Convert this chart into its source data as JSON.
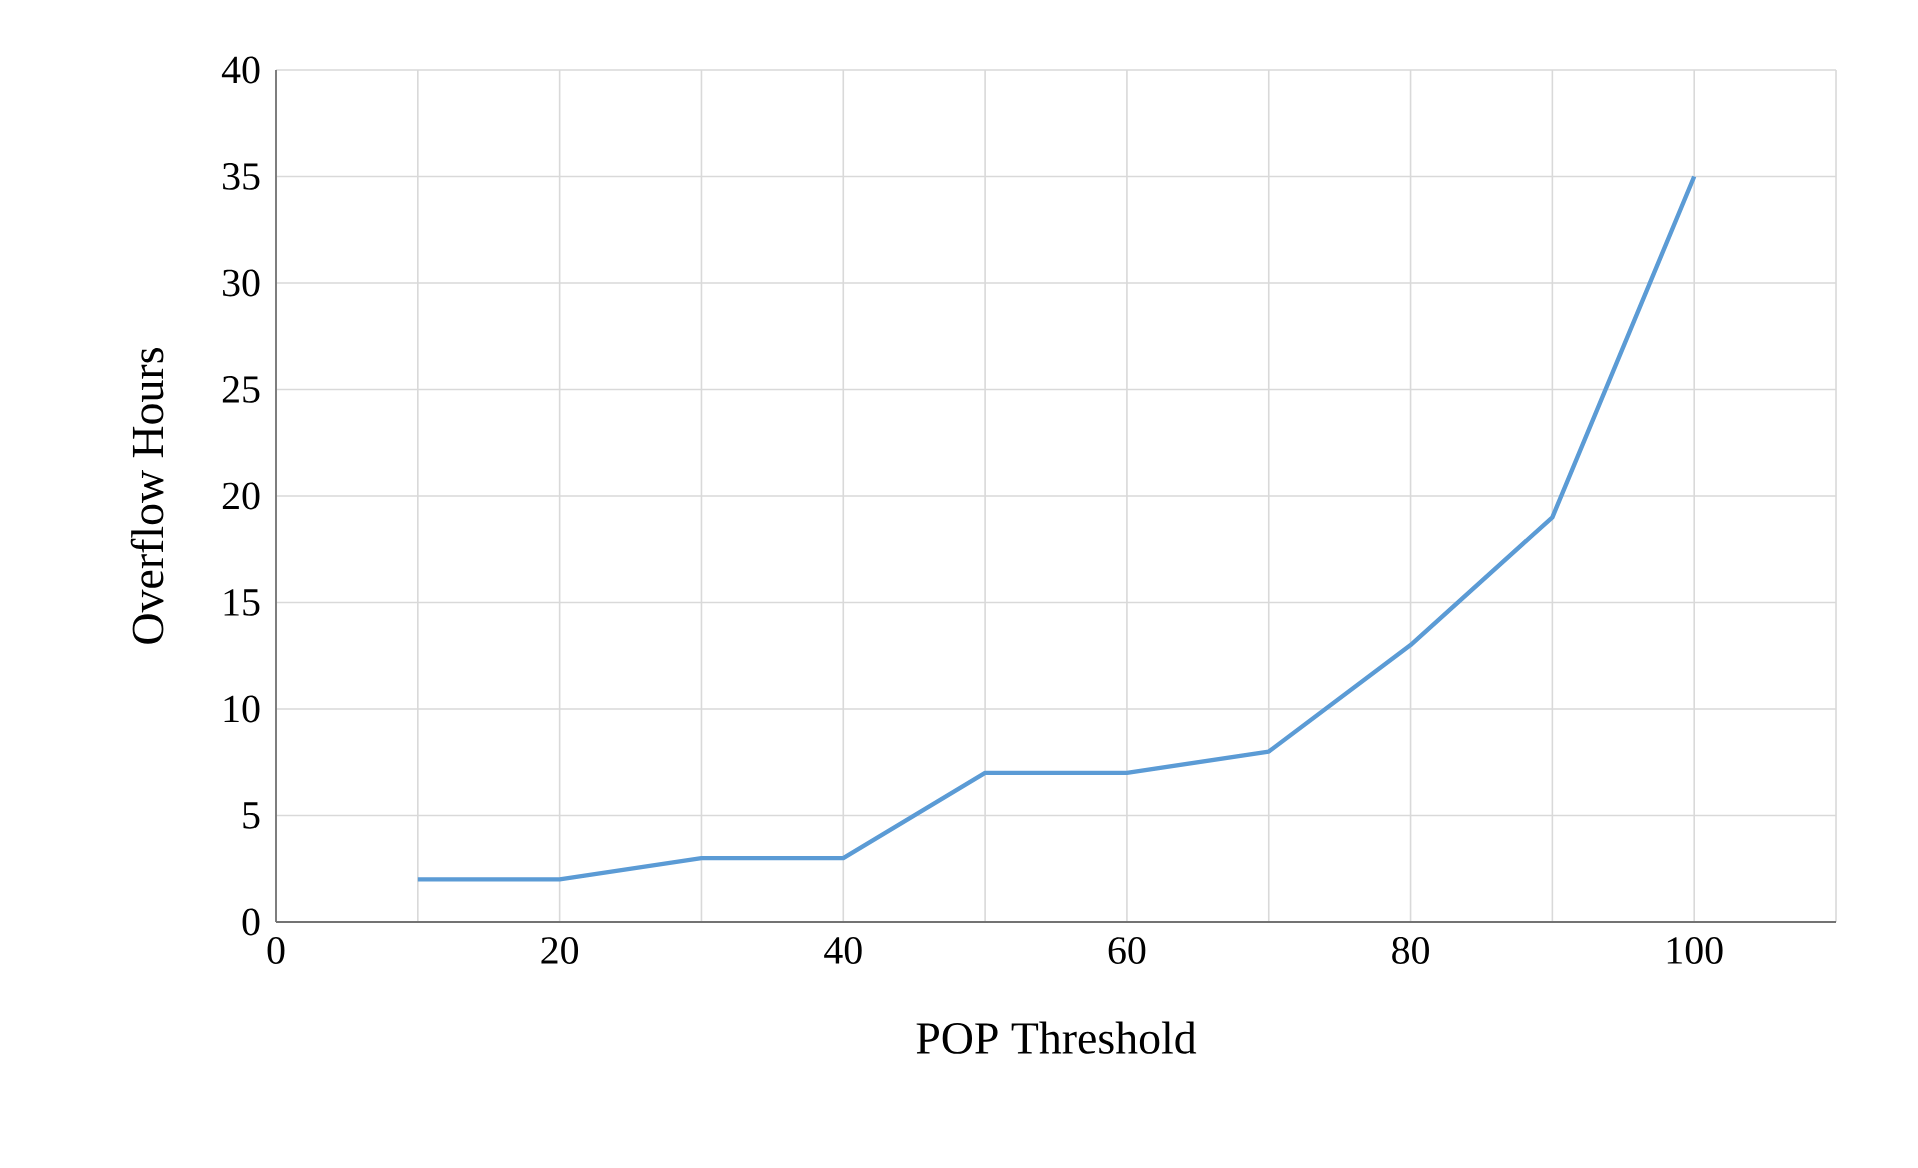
{
  "chart_data": {
    "type": "line",
    "xlabel": "POP Threshold",
    "ylabel": "Overflow  Hours",
    "x": [
      10,
      20,
      30,
      40,
      50,
      60,
      70,
      80,
      90,
      100
    ],
    "series": [
      {
        "color": "#5b9bd5",
        "values": [
          2,
          2,
          3,
          3,
          7,
          7,
          8,
          13,
          19,
          35
        ]
      }
    ],
    "xlim": [
      0,
      110
    ],
    "xticks": [
      0,
      {
        "value": 10,
        "label": null
      },
      20,
      {
        "value": 30,
        "label": null
      },
      40,
      {
        "value": 50,
        "label": null
      },
      60,
      {
        "value": 70,
        "label": null
      },
      80,
      {
        "value": 90,
        "label": null
      },
      100,
      {
        "value": 110,
        "label": null
      }
    ],
    "ylim": [
      0,
      40
    ],
    "yticks": [
      0,
      5,
      10,
      15,
      20,
      25,
      30,
      35,
      40
    ],
    "grid": true,
    "marker": "none",
    "line_style": "solid"
  }
}
